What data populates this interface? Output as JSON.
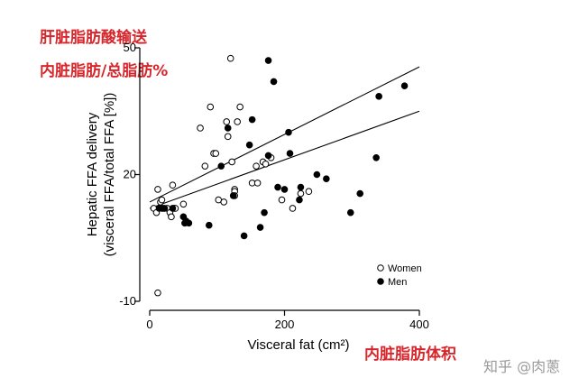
{
  "annotations": {
    "cn_title_line1": "肝脏脂肪酸输送",
    "cn_title_line2": "内脏脂肪/总脂肪%",
    "cn_xlabel": "内脏脂肪体积",
    "watermark": "知乎 @肉蔥"
  },
  "colors": {
    "annotation": "#d7262b",
    "watermark": "#9a9a9a",
    "axis": "#000000"
  },
  "chart_data": {
    "type": "scatter",
    "title": "",
    "xlabel": "Visceral fat (cm²)",
    "ylabel_line1": "Hepatic FFA delivery",
    "ylabel_line2": "(visceral FFA/total FFA [%])",
    "xlim": [
      0,
      400
    ],
    "ylim": [
      -10,
      50
    ],
    "x_ticks": [
      0,
      200,
      400
    ],
    "y_ticks": [
      -10,
      20,
      50
    ],
    "grid": false,
    "legend_position": "bottom-right",
    "series": [
      {
        "name": "Women",
        "marker": "open-circle",
        "points": [
          [
            6,
            12
          ],
          [
            10,
            11
          ],
          [
            12,
            16.5
          ],
          [
            12,
            -8
          ],
          [
            16,
            13.5
          ],
          [
            18,
            14
          ],
          [
            20,
            12
          ],
          [
            26,
            12
          ],
          [
            30,
            11
          ],
          [
            32,
            10
          ],
          [
            34,
            17.5
          ],
          [
            36,
            12
          ],
          [
            38,
            12
          ],
          [
            50,
            13
          ],
          [
            75,
            31
          ],
          [
            82,
            22
          ],
          [
            90,
            36
          ],
          [
            95,
            25
          ],
          [
            98,
            25
          ],
          [
            102,
            14
          ],
          [
            110,
            13.5
          ],
          [
            114,
            32.5
          ],
          [
            116,
            29
          ],
          [
            120,
            47.5
          ],
          [
            122,
            23
          ],
          [
            126,
            16.5
          ],
          [
            126,
            16
          ],
          [
            126,
            15
          ],
          [
            130,
            32.5
          ],
          [
            134,
            36
          ],
          [
            152,
            18
          ],
          [
            158,
            22
          ],
          [
            160,
            18
          ],
          [
            168,
            23
          ],
          [
            172,
            22.5
          ],
          [
            180,
            24
          ],
          [
            196,
            14
          ],
          [
            212,
            12
          ],
          [
            224,
            15.5
          ],
          [
            236,
            16
          ]
        ]
      },
      {
        "name": "Men",
        "marker": "filled-circle",
        "points": [
          [
            14,
            12
          ],
          [
            18,
            12
          ],
          [
            22,
            12
          ],
          [
            34,
            12
          ],
          [
            50,
            10
          ],
          [
            52,
            8.5
          ],
          [
            54,
            9
          ],
          [
            58,
            8.5
          ],
          [
            88,
            8
          ],
          [
            106,
            22
          ],
          [
            116,
            31
          ],
          [
            124,
            15
          ],
          [
            140,
            5.5
          ],
          [
            148,
            27
          ],
          [
            152,
            33
          ],
          [
            164,
            7.5
          ],
          [
            170,
            11
          ],
          [
            176,
            24.5
          ],
          [
            176,
            47
          ],
          [
            184,
            42
          ],
          [
            190,
            17
          ],
          [
            200,
            16.5
          ],
          [
            206,
            30
          ],
          [
            208,
            25
          ],
          [
            222,
            14
          ],
          [
            224,
            17
          ],
          [
            248,
            20
          ],
          [
            262,
            19
          ],
          [
            298,
            11
          ],
          [
            312,
            15.5
          ],
          [
            336,
            24
          ],
          [
            340,
            38.5
          ],
          [
            378,
            41
          ]
        ]
      }
    ],
    "regression_lines": [
      {
        "series": "Men",
        "x": [
          0,
          400
        ],
        "y": [
          13.5,
          45.5
        ]
      },
      {
        "series": "Women",
        "x": [
          0,
          400
        ],
        "y": [
          12,
          35
        ]
      }
    ]
  }
}
